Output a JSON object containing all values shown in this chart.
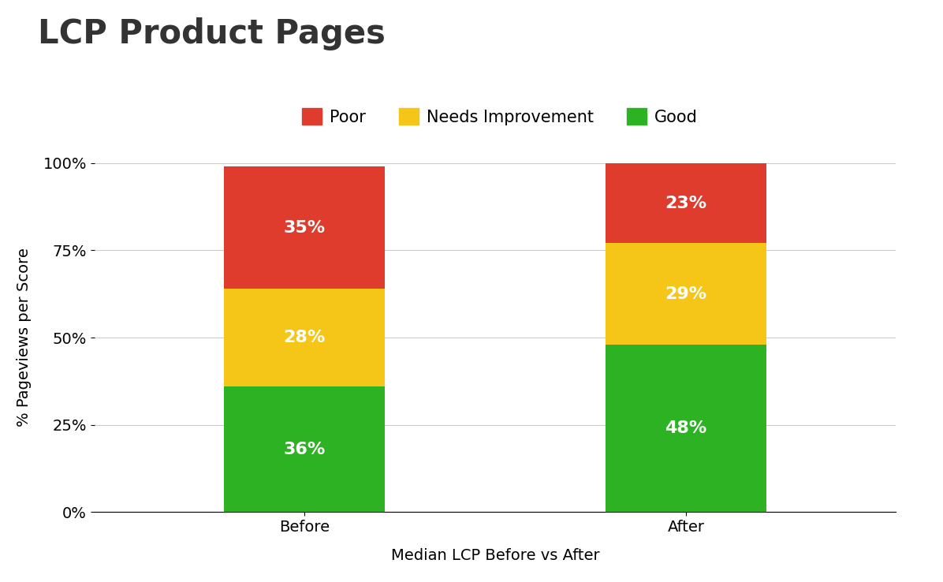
{
  "title": "LCP Product Pages",
  "xlabel": "Median LCP Before vs After",
  "ylabel": "% Pageviews per Score",
  "categories": [
    "Before",
    "After"
  ],
  "good": [
    36,
    48
  ],
  "needs_improvement": [
    28,
    29
  ],
  "poor": [
    35,
    23
  ],
  "good_color": "#2db224",
  "needs_improvement_color": "#f5c518",
  "poor_color": "#e03c2d",
  "label_color": "#ffffff",
  "yticks": [
    0,
    25,
    50,
    75,
    100
  ],
  "ytick_labels": [
    "0%",
    "25%",
    "50%",
    "75%",
    "100%"
  ],
  "title_fontsize": 30,
  "axis_label_fontsize": 14,
  "tick_fontsize": 14,
  "legend_fontsize": 15,
  "bar_label_fontsize": 16,
  "bar_width": 0.42,
  "background_color": "#ffffff",
  "grid_color": "#cccccc"
}
